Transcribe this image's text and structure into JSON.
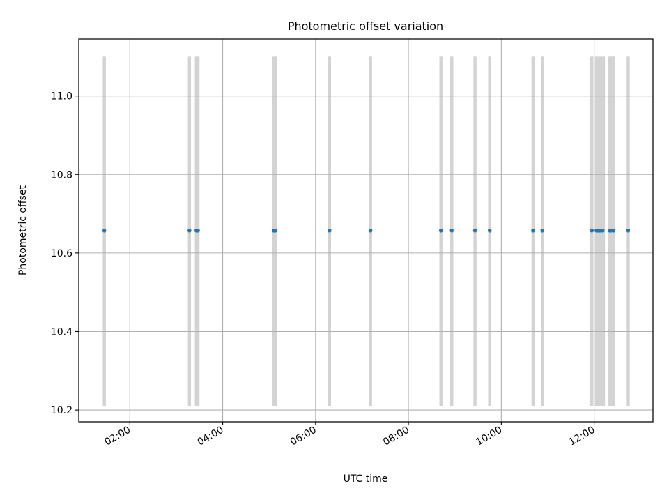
{
  "chart_data": {
    "type": "scatter",
    "title": "Photometric offset variation",
    "xlabel": "UTC time",
    "ylabel": "Photometric offset",
    "x_axis_type": "time",
    "xlim": [
      "00:54",
      "13:16"
    ],
    "ylim": [
      10.17,
      11.145
    ],
    "x_ticks": [
      "02:00",
      "04:00",
      "06:00",
      "08:00",
      "10:00",
      "12:00"
    ],
    "y_ticks": [
      "10.2",
      "10.4",
      "10.6",
      "10.8",
      "11.0"
    ],
    "grid": true,
    "series": [
      {
        "marker": "point",
        "color": "#1f77b4",
        "points": [
          {
            "x": "01:27",
            "y": 10.657
          },
          {
            "x": "03:17",
            "y": 10.657
          },
          {
            "x": "03:26",
            "y": 10.657
          },
          {
            "x": "03:28",
            "y": 10.657
          },
          {
            "x": "05:06",
            "y": 10.657
          },
          {
            "x": "05:07",
            "y": 10.657
          },
          {
            "x": "05:08",
            "y": 10.657
          },
          {
            "x": "06:18",
            "y": 10.657
          },
          {
            "x": "07:11",
            "y": 10.657
          },
          {
            "x": "08:42",
            "y": 10.657
          },
          {
            "x": "08:56",
            "y": 10.657
          },
          {
            "x": "09:26",
            "y": 10.657
          },
          {
            "x": "09:45",
            "y": 10.657
          },
          {
            "x": "10:41",
            "y": 10.657
          },
          {
            "x": "10:53",
            "y": 10.657
          },
          {
            "x": "11:57",
            "y": 10.657
          },
          {
            "x": "12:03",
            "y": 10.657
          },
          {
            "x": "12:05",
            "y": 10.657
          },
          {
            "x": "12:07",
            "y": 10.657
          },
          {
            "x": "12:09",
            "y": 10.657
          },
          {
            "x": "12:11",
            "y": 10.657
          },
          {
            "x": "12:20",
            "y": 10.657
          },
          {
            "x": "12:22",
            "y": 10.657
          },
          {
            "x": "12:25",
            "y": 10.657
          },
          {
            "x": "12:44",
            "y": 10.657
          }
        ]
      }
    ],
    "shaded_spans": {
      "color": "#d3d3d3",
      "y_range": [
        10.21,
        11.1
      ],
      "x_ranges": [
        [
          "01:25",
          "01:29"
        ],
        [
          "03:15",
          "03:19"
        ],
        [
          "03:24",
          "03:30"
        ],
        [
          "05:04",
          "05:10"
        ],
        [
          "06:16",
          "06:20"
        ],
        [
          "07:09",
          "07:13"
        ],
        [
          "08:40",
          "08:44"
        ],
        [
          "08:54",
          "08:58"
        ],
        [
          "09:24",
          "09:28"
        ],
        [
          "09:43",
          "09:47"
        ],
        [
          "10:39",
          "10:43"
        ],
        [
          "10:51",
          "10:55"
        ],
        [
          "11:54",
          "11:59"
        ],
        [
          "12:01",
          "12:14"
        ],
        [
          "12:18",
          "12:27"
        ],
        [
          "12:42",
          "12:46"
        ]
      ]
    }
  }
}
